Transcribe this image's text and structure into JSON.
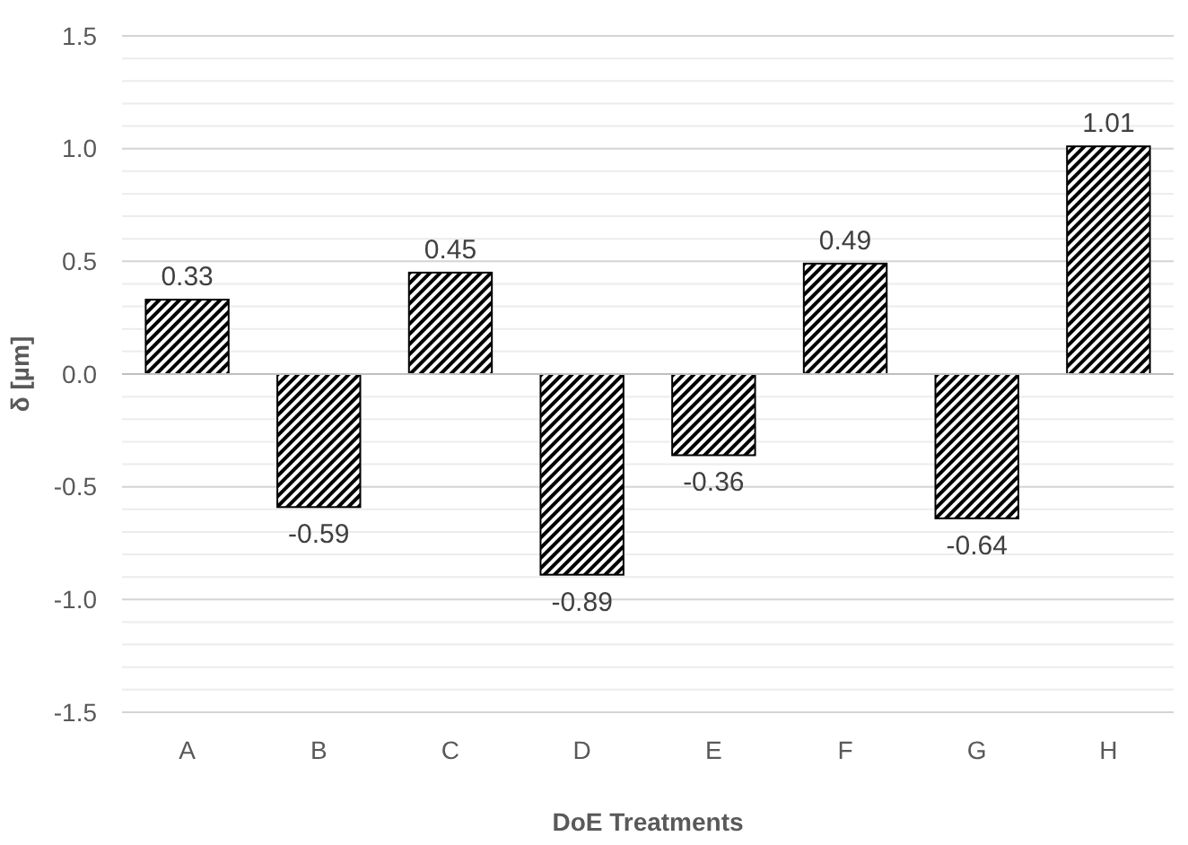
{
  "chart_data": {
    "type": "bar",
    "xlabel": "DoE Treatments",
    "ylabel": "δ [µm]",
    "categories": [
      "A",
      "B",
      "C",
      "D",
      "E",
      "F",
      "G",
      "H"
    ],
    "values": [
      0.33,
      -0.59,
      0.45,
      -0.89,
      -0.36,
      0.49,
      -0.64,
      1.01
    ],
    "color": "#000000",
    "data_labels": true,
    "grid": "y",
    "ylim": [
      -1.5,
      1.5
    ],
    "yticks": [
      {
        "value": -1.5,
        "label": "-1.5"
      },
      {
        "value": -1.4,
        "label": null
      },
      {
        "value": -1.3,
        "label": null
      },
      {
        "value": -1.2,
        "label": null
      },
      {
        "value": -1.1,
        "label": null
      },
      {
        "value": -1,
        "label": "-1.0"
      },
      {
        "value": -0.9,
        "label": null
      },
      {
        "value": -0.8,
        "label": null
      },
      {
        "value": -0.7,
        "label": null
      },
      {
        "value": -0.6,
        "label": null
      },
      {
        "value": -0.5,
        "label": "-0.5"
      },
      {
        "value": -0.4,
        "label": null
      },
      {
        "value": -0.3,
        "label": null
      },
      {
        "value": -0.2,
        "label": null
      },
      {
        "value": -0.1,
        "label": null
      },
      {
        "value": 0,
        "label": "0.0"
      },
      {
        "value": 0.1,
        "label": null
      },
      {
        "value": 0.2,
        "label": null
      },
      {
        "value": 0.3,
        "label": null
      },
      {
        "value": 0.4,
        "label": null
      },
      {
        "value": 0.5,
        "label": "0.5"
      },
      {
        "value": 0.6,
        "label": null
      },
      {
        "value": 0.7,
        "label": null
      },
      {
        "value": 0.8,
        "label": null
      },
      {
        "value": 0.9,
        "label": null
      },
      {
        "value": 1,
        "label": "1.0"
      },
      {
        "value": 1.1,
        "label": null
      },
      {
        "value": 1.2,
        "label": null
      },
      {
        "value": 1.3,
        "label": null
      },
      {
        "value": 1.4,
        "label": null
      },
      {
        "value": 1.5,
        "label": "1.5"
      }
    ]
  }
}
